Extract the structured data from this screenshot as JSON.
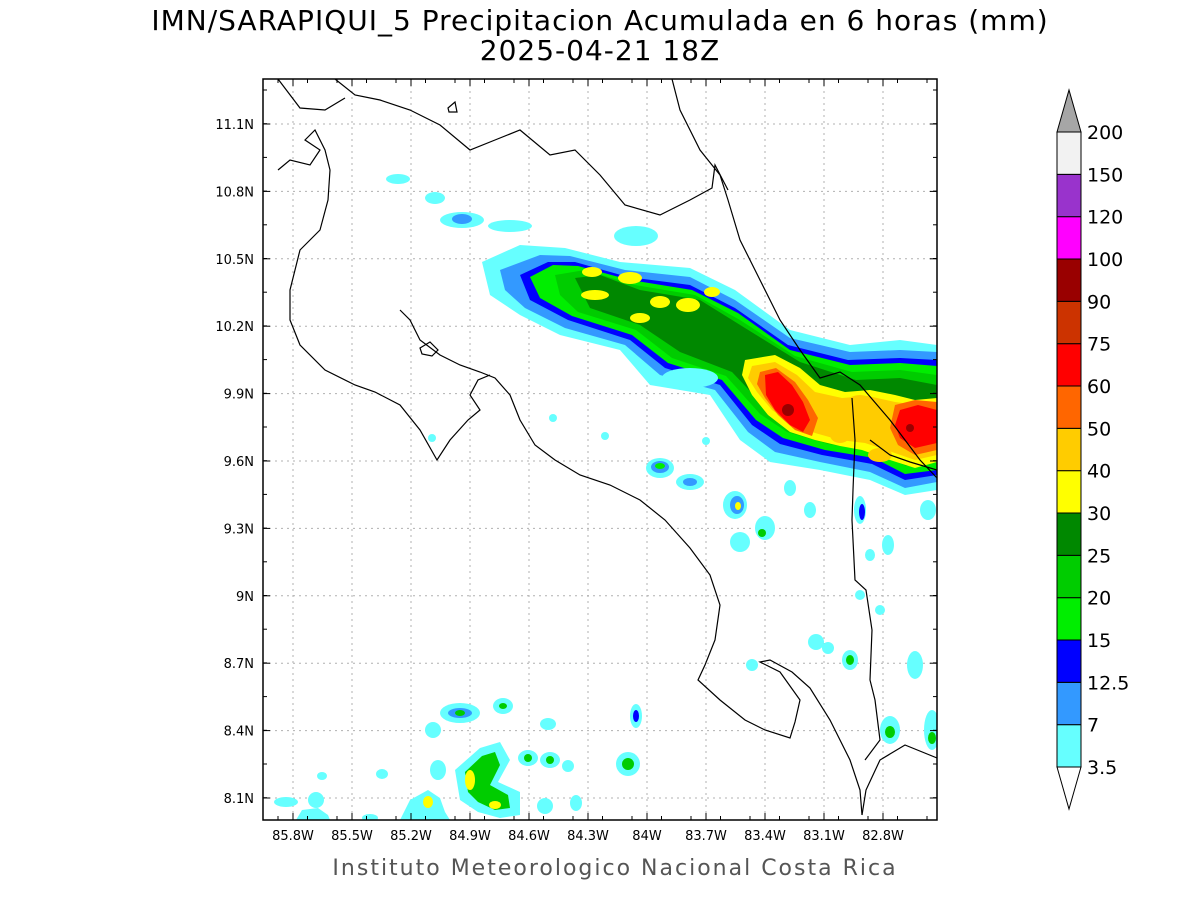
{
  "title_line1": "IMN/SARAPIQUI_5 Precipitacion Acumulada en 6 horas (mm)",
  "title_line2": "2025-04-21 18Z",
  "footer": "Instituto Meteorologico Nacional Costa Rica",
  "lon_ticks": [
    "85.8W",
    "85.5W",
    "85.2W",
    "84.9W",
    "84.6W",
    "84.3W",
    "84W",
    "83.7W",
    "83.4W",
    "83.1W",
    "82.8W"
  ],
  "lat_ticks": [
    "11.1N",
    "10.8N",
    "10.5N",
    "10.2N",
    "9.9N",
    "9.6N",
    "9.3N",
    "9N",
    "8.7N",
    "8.4N",
    "8.1N"
  ],
  "colorbar": {
    "levels": [
      "3.5",
      "7",
      "12.5",
      "15",
      "20",
      "25",
      "30",
      "40",
      "50",
      "60",
      "75",
      "90",
      "100",
      "120",
      "150",
      "200"
    ],
    "colors": [
      "#66ffff",
      "#3399ff",
      "#0000ff",
      "#00ee00",
      "#00cc00",
      "#008800",
      "#ffff00",
      "#ffcc00",
      "#ff6600",
      "#ff0000",
      "#cc3300",
      "#990000",
      "#ff00ff",
      "#9933cc",
      "#f2f2f2",
      "#a6a6a6"
    ],
    "under_color": "#ffffff",
    "over_color": "#a6a6a6"
  },
  "precip_colors": {
    "c35": "#66ffff",
    "c7": "#3399ff",
    "c125": "#0000ff",
    "c15": "#00ee00",
    "c20": "#00cc00",
    "c25": "#008800",
    "c30": "#ffff00",
    "c40": "#ffcc00",
    "c50": "#ff6600",
    "c60": "#ff0000",
    "c90": "#990000"
  }
}
